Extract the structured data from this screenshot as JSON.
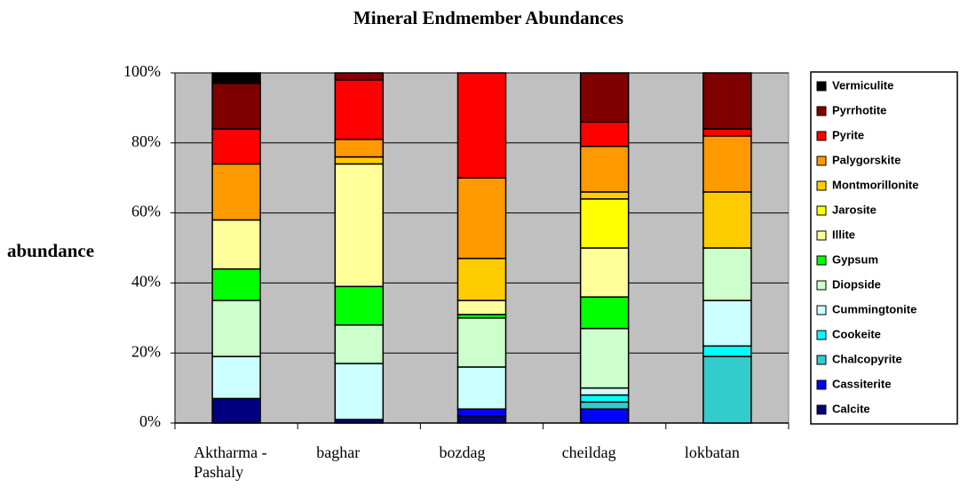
{
  "chart_data": {
    "type": "stacked_bar",
    "title": "Mineral Endmember Abundances",
    "y_label": "abundance",
    "categories": [
      "Aktharma - Pashaly",
      "baghar",
      "bozdag",
      "cheildag",
      "lokbatan"
    ],
    "ylim": [
      0,
      100
    ],
    "yticks": [
      {
        "value": 0,
        "label": "0%"
      },
      {
        "value": 20,
        "label": "20%"
      },
      {
        "value": 40,
        "label": "40%"
      },
      {
        "value": 60,
        "label": "60%"
      },
      {
        "value": 80,
        "label": "80%"
      },
      {
        "value": 100,
        "label": "100%"
      }
    ],
    "grid": true,
    "legend": "right",
    "series": [
      {
        "name": "Calcite",
        "color": "#000080",
        "values": [
          7,
          1,
          2,
          0,
          0
        ]
      },
      {
        "name": "Cassiterite",
        "color": "#0000ff",
        "values": [
          0,
          0,
          2,
          4,
          0
        ]
      },
      {
        "name": "Chalcopyrite",
        "color": "#33cccc",
        "values": [
          0,
          0,
          0,
          2,
          19
        ]
      },
      {
        "name": "Cookeite",
        "color": "#00ffff",
        "values": [
          0,
          0,
          0,
          2,
          3
        ]
      },
      {
        "name": "Cummingtonite",
        "color": "#ccffff",
        "values": [
          12,
          16,
          12,
          2,
          13
        ]
      },
      {
        "name": "Diopside",
        "color": "#ccffcc",
        "values": [
          16,
          11,
          14,
          17,
          15
        ]
      },
      {
        "name": "Gypsum",
        "color": "#00ff00",
        "values": [
          9,
          11,
          1,
          9,
          0
        ]
      },
      {
        "name": "Illite",
        "color": "#ffff99",
        "values": [
          14,
          35,
          4,
          14,
          0
        ]
      },
      {
        "name": "Jarosite",
        "color": "#ffff00",
        "values": [
          0,
          0,
          0,
          14,
          0
        ]
      },
      {
        "name": "Montmorillonite",
        "color": "#ffcc00",
        "values": [
          0,
          2,
          12,
          2,
          16
        ]
      },
      {
        "name": "Palygorskite",
        "color": "#ff9900",
        "values": [
          16,
          5,
          23,
          13,
          16
        ]
      },
      {
        "name": "Pyrite",
        "color": "#ff0000",
        "values": [
          10,
          17,
          30,
          7,
          2
        ]
      },
      {
        "name": "Pyrrhotite",
        "color": "#800000",
        "values": [
          13,
          2,
          0,
          14,
          16
        ]
      },
      {
        "name": "Vermiculite",
        "color": "#000000",
        "values": [
          3,
          0,
          0,
          0,
          0
        ]
      }
    ]
  }
}
